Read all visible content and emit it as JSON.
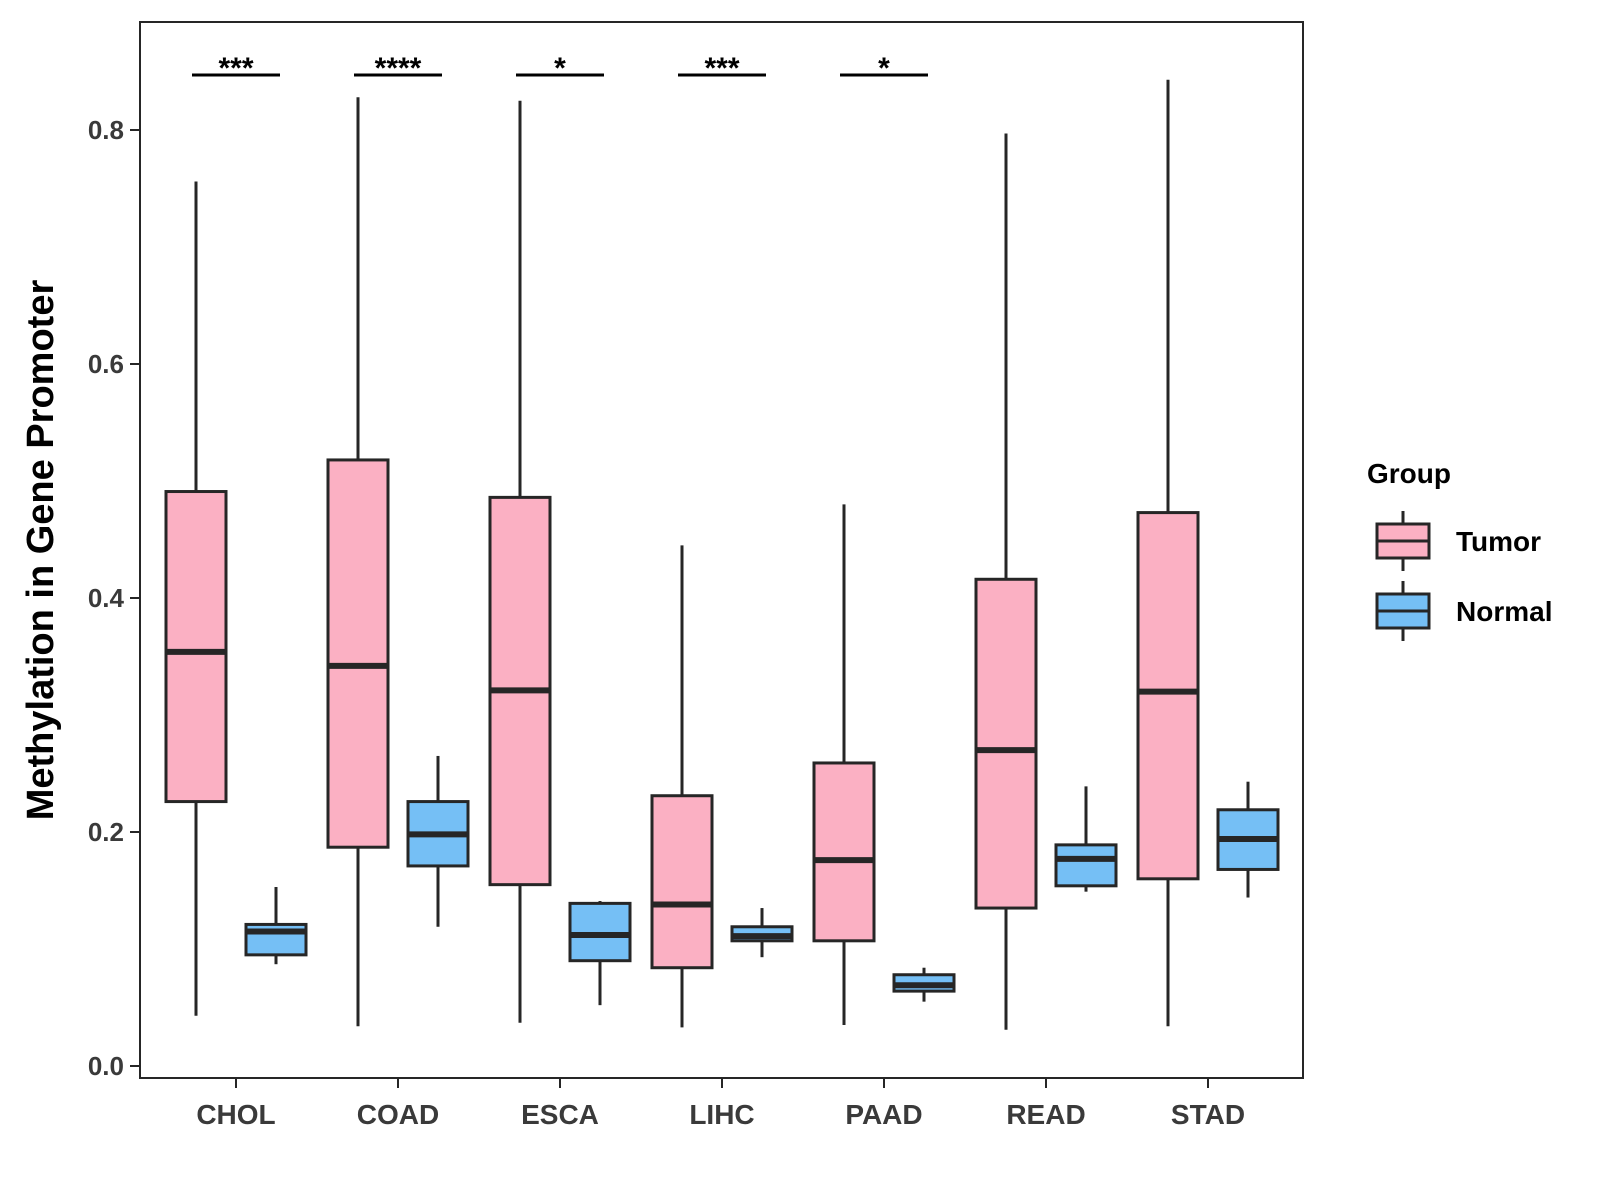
{
  "chart_data": {
    "type": "boxplot",
    "ylabel": "Methylation in Gene Promoter",
    "xlabel": "",
    "ylim": [
      0,
      0.9
    ],
    "yticks": [
      0.0,
      0.2,
      0.4,
      0.6,
      0.8
    ],
    "ytick_labels": [
      "0.0",
      "0.2",
      "0.4",
      "0.6",
      "0.8"
    ],
    "grid": false,
    "categories": [
      "CHOL",
      "COAD",
      "ESCA",
      "LIHC",
      "PAAD",
      "READ",
      "STAD"
    ],
    "legend": {
      "title": "Group",
      "placement": "right",
      "items": [
        {
          "label": "Tumor",
          "color": "#FBB0C3"
        },
        {
          "label": "Normal",
          "color": "#75BFF5"
        }
      ]
    },
    "colors": {
      "Tumor": "#FBB0C3",
      "Normal": "#75BFF5",
      "outline": "#262626"
    },
    "series": [
      {
        "name": "Tumor",
        "boxes": [
          {
            "category": "CHOL",
            "min": 0.043,
            "q1": 0.226,
            "median": 0.354,
            "q3": 0.491,
            "max": 0.756
          },
          {
            "category": "COAD",
            "min": 0.034,
            "q1": 0.187,
            "median": 0.342,
            "q3": 0.518,
            "max": 0.828
          },
          {
            "category": "ESCA",
            "min": 0.037,
            "q1": 0.155,
            "median": 0.321,
            "q3": 0.486,
            "max": 0.825
          },
          {
            "category": "LIHC",
            "min": 0.033,
            "q1": 0.084,
            "median": 0.138,
            "q3": 0.231,
            "max": 0.445
          },
          {
            "category": "PAAD",
            "min": 0.035,
            "q1": 0.107,
            "median": 0.176,
            "q3": 0.259,
            "max": 0.48
          },
          {
            "category": "READ",
            "min": 0.031,
            "q1": 0.135,
            "median": 0.27,
            "q3": 0.416,
            "max": 0.797
          },
          {
            "category": "STAD",
            "min": 0.034,
            "q1": 0.16,
            "median": 0.32,
            "q3": 0.473,
            "max": 0.843
          }
        ]
      },
      {
        "name": "Normal",
        "boxes": [
          {
            "category": "CHOL",
            "min": 0.087,
            "q1": 0.095,
            "median": 0.115,
            "q3": 0.121,
            "max": 0.153
          },
          {
            "category": "COAD",
            "min": 0.119,
            "q1": 0.171,
            "median": 0.198,
            "q3": 0.226,
            "max": 0.265
          },
          {
            "category": "ESCA",
            "min": 0.052,
            "q1": 0.09,
            "median": 0.112,
            "q3": 0.139,
            "max": 0.141
          },
          {
            "category": "LIHC",
            "min": 0.093,
            "q1": 0.107,
            "median": 0.111,
            "q3": 0.119,
            "max": 0.135
          },
          {
            "category": "PAAD",
            "min": 0.055,
            "q1": 0.064,
            "median": 0.069,
            "q3": 0.078,
            "max": 0.084
          },
          {
            "category": "READ",
            "min": 0.149,
            "q1": 0.154,
            "median": 0.177,
            "q3": 0.189,
            "max": 0.239
          },
          {
            "category": "STAD",
            "min": 0.144,
            "q1": 0.168,
            "median": 0.194,
            "q3": 0.219,
            "max": 0.243
          }
        ]
      }
    ],
    "annotations": [
      {
        "category": "CHOL",
        "label": "***"
      },
      {
        "category": "COAD",
        "label": "****"
      },
      {
        "category": "ESCA",
        "label": "*"
      },
      {
        "category": "LIHC",
        "label": "***"
      },
      {
        "category": "PAAD",
        "label": "*"
      }
    ]
  }
}
